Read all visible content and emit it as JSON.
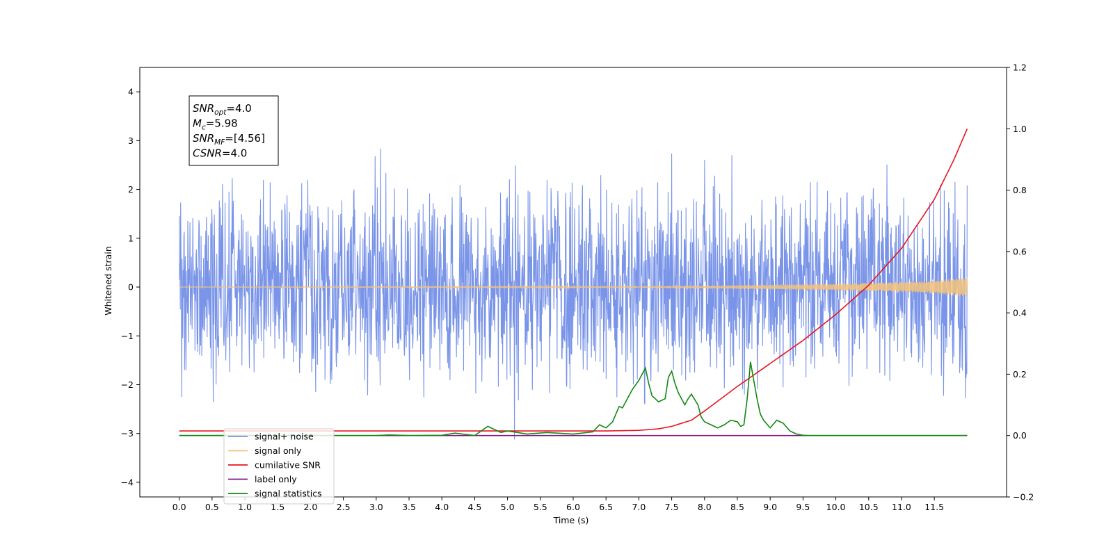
{
  "chart_data": {
    "type": "line",
    "xlabel": "Time (s)",
    "ylabel": "Whitened strain",
    "xlim": [
      -0.6,
      12.6
    ],
    "ylim": [
      -4.3,
      4.5
    ],
    "y2lim": [
      -0.2,
      1.2
    ],
    "x_ticks": [
      "0.0",
      "0.5",
      "1.0",
      "1.5",
      "2.0",
      "2.5",
      "3.0",
      "3.5",
      "4.0",
      "4.5",
      "5.0",
      "5.5",
      "6.0",
      "6.5",
      "7.0",
      "7.5",
      "8.0",
      "8.5",
      "9.0",
      "9.5",
      "10.0",
      "10.5",
      "11.0",
      "11.5"
    ],
    "y_ticks": [
      "−4",
      "−3",
      "−2",
      "−1",
      "0",
      "1",
      "2",
      "3",
      "4"
    ],
    "y2_ticks": [
      "−0.2",
      "0.0",
      "0.2",
      "0.4",
      "0.6",
      "0.8",
      "1.0",
      "1.2"
    ],
    "annotation": [
      {
        "main": "SNR",
        "sub": "opt",
        "rest": "=4.0"
      },
      {
        "main": "M",
        "sub": "c",
        "rest": "=5.98"
      },
      {
        "main": "SNR",
        "sub": "MF",
        "rest": "=[4.56]"
      },
      {
        "main": "CSNR",
        "sub": "",
        "rest": "=4.0"
      }
    ],
    "legend_position": "lower-left",
    "series": [
      {
        "name": "signal+ noise",
        "color": "#7994e8",
        "axis": "left",
        "kind": "noise",
        "noise_std": 0.95,
        "x_range": [
          0,
          12
        ]
      },
      {
        "name": "signal only",
        "color": "#f5c37a",
        "axis": "left",
        "kind": "chirp",
        "amplitude_envelope": {
          "x": [
            0,
            6.0,
            8.0,
            9.0,
            10.0,
            11.0,
            11.5,
            12.0
          ],
          "y": [
            0.005,
            0.01,
            0.03,
            0.045,
            0.065,
            0.1,
            0.13,
            0.2
          ]
        }
      },
      {
        "name": "cumilative SNR",
        "color": "#e8141e",
        "axis": "right",
        "x": [
          0,
          6.0,
          6.5,
          7.0,
          7.3,
          7.5,
          7.8,
          8.0,
          8.5,
          9.0,
          9.5,
          10.0,
          10.5,
          11.0,
          11.5,
          11.8,
          12.0
        ],
        "y": [
          0.015,
          0.015,
          0.015,
          0.017,
          0.022,
          0.03,
          0.05,
          0.08,
          0.16,
          0.235,
          0.31,
          0.395,
          0.49,
          0.61,
          0.77,
          0.9,
          1.0
        ]
      },
      {
        "name": "label only",
        "color": "#7a1a7a",
        "axis": "right",
        "x": [
          0,
          12
        ],
        "y": [
          0.0,
          0.0
        ]
      },
      {
        "name": "signal statistics",
        "color": "#118811",
        "axis": "right",
        "x": [
          0,
          3.0,
          3.2,
          3.5,
          4.0,
          4.2,
          4.5,
          4.7,
          4.9,
          5.0,
          5.3,
          5.6,
          6.0,
          6.3,
          6.4,
          6.5,
          6.6,
          6.7,
          6.75,
          6.8,
          6.9,
          7.0,
          7.1,
          7.15,
          7.2,
          7.3,
          7.4,
          7.45,
          7.5,
          7.55,
          7.6,
          7.7,
          7.75,
          7.8,
          7.9,
          7.95,
          8.0,
          8.1,
          8.2,
          8.3,
          8.4,
          8.5,
          8.55,
          8.6,
          8.65,
          8.7,
          8.75,
          8.8,
          8.85,
          8.9,
          9.0,
          9.1,
          9.2,
          9.3,
          9.4,
          9.5,
          9.6,
          10.0,
          11.0,
          12.0
        ],
        "y": [
          0.0,
          0.0,
          0.002,
          0.0,
          0.001,
          0.008,
          0.0,
          0.03,
          0.01,
          0.015,
          0.005,
          0.01,
          0.005,
          0.012,
          0.035,
          0.025,
          0.045,
          0.095,
          0.09,
          0.11,
          0.15,
          0.18,
          0.22,
          0.17,
          0.13,
          0.11,
          0.12,
          0.19,
          0.21,
          0.17,
          0.14,
          0.1,
          0.12,
          0.135,
          0.1,
          0.06,
          0.045,
          0.035,
          0.025,
          0.035,
          0.05,
          0.045,
          0.03,
          0.035,
          0.12,
          0.24,
          0.18,
          0.12,
          0.07,
          0.05,
          0.025,
          0.05,
          0.04,
          0.015,
          0.005,
          0.001,
          0.0,
          0.0,
          0.0,
          0.0
        ]
      }
    ]
  }
}
